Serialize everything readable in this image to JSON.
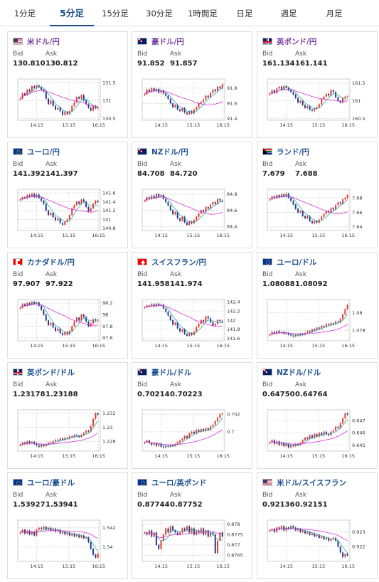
{
  "tabs": [
    {
      "label": "1分足",
      "active": false
    },
    {
      "label": "5分足",
      "active": true
    },
    {
      "label": "15分足",
      "active": false
    },
    {
      "label": "30分足",
      "active": false
    },
    {
      "label": "1時間足",
      "active": false
    },
    {
      "label": "日足",
      "active": false
    },
    {
      "label": "週足",
      "active": false
    },
    {
      "label": "月足",
      "active": false
    }
  ],
  "labels": {
    "bid": "Bid",
    "ask": "Ask"
  },
  "colors": {
    "up": "#e8372d",
    "down": "#1f3a8a",
    "ma_fast": "#2ea7a1",
    "ma_slow": "#d633d6",
    "title_jpy": "#7a3fa0",
    "title_other": "#1a4f8f",
    "active_tab": "#1a4f8f"
  },
  "cards": [
    {
      "pair": "米ドル/円",
      "flag": "us-jp",
      "jpy": true,
      "bid": "130.810",
      "ask": "130.812",
      "chart_data": {
        "type": "candlestick",
        "x_ticks": [
          "14:15",
          "15:15",
          "16:15"
        ],
        "y_ticks": [
          "131.5",
          "131",
          "130.5"
        ],
        "ylim": [
          130.45,
          131.6
        ],
        "close": [
          131.05,
          131.2,
          131.15,
          131.3,
          131.25,
          131.4,
          131.35,
          131.42,
          131.38,
          131.3,
          131.25,
          131.05,
          130.9,
          131.0,
          130.85,
          130.75,
          130.8,
          130.7,
          130.6,
          130.68,
          130.62,
          130.7,
          130.85,
          130.95,
          131.1,
          131.05,
          131.15,
          131.0,
          130.9,
          130.8,
          130.72,
          130.85,
          130.78,
          130.81
        ]
      }
    },
    {
      "pair": "豪ドル/円",
      "flag": "au-jp",
      "jpy": true,
      "bid": "91.852",
      "ask": "91.857",
      "chart_data": {
        "type": "candlestick",
        "x_ticks": [
          "14:15",
          "15:15",
          "16:15"
        ],
        "y_ticks": [
          "91.8",
          "91.6",
          "91.4"
        ],
        "ylim": [
          91.38,
          91.92
        ],
        "close": [
          91.72,
          91.78,
          91.75,
          91.8,
          91.76,
          91.79,
          91.74,
          91.77,
          91.73,
          91.7,
          91.66,
          91.6,
          91.55,
          91.58,
          91.52,
          91.5,
          91.54,
          91.48,
          91.46,
          91.5,
          91.47,
          91.52,
          91.55,
          91.6,
          91.62,
          91.65,
          91.7,
          91.68,
          91.74,
          91.78,
          91.76,
          91.82,
          91.8,
          91.85
        ]
      }
    },
    {
      "pair": "英ポンド/円",
      "flag": "uk-jp",
      "jpy": true,
      "bid": "161.134",
      "ask": "161.141",
      "chart_data": {
        "type": "candlestick",
        "x_ticks": [
          "14:15",
          "15:15",
          "16:15"
        ],
        "y_ticks": [
          "161.5",
          "161",
          "160.5"
        ],
        "ylim": [
          160.45,
          161.62
        ],
        "close": [
          161.2,
          161.3,
          161.22,
          161.35,
          161.4,
          161.32,
          161.42,
          161.38,
          161.3,
          161.25,
          161.18,
          161.08,
          160.95,
          161.0,
          160.88,
          160.8,
          160.85,
          160.75,
          160.72,
          160.78,
          160.82,
          160.9,
          161.05,
          161.12,
          161.2,
          161.15,
          161.3,
          161.25,
          161.1,
          161.0,
          160.95,
          161.08,
          161.12,
          161.13
        ]
      }
    },
    {
      "pair": "ユーロ/円",
      "flag": "eu-jp",
      "jpy": false,
      "bid": "141.392",
      "ask": "141.397",
      "chart_data": {
        "type": "candlestick",
        "x_ticks": [
          "14:15",
          "15:15",
          "16:15"
        ],
        "y_ticks": [
          "141.6",
          "141.4",
          "141.2",
          "141",
          "140.8"
        ],
        "ylim": [
          140.75,
          141.68
        ],
        "close": [
          141.45,
          141.5,
          141.48,
          141.55,
          141.52,
          141.58,
          141.5,
          141.56,
          141.48,
          141.42,
          141.35,
          141.2,
          141.1,
          141.15,
          141.05,
          140.98,
          141.02,
          140.92,
          140.88,
          140.95,
          141.0,
          141.1,
          141.25,
          141.32,
          141.4,
          141.35,
          141.45,
          141.4,
          141.28,
          141.18,
          141.25,
          141.35,
          141.42,
          141.39
        ]
      }
    },
    {
      "pair": "NZドル/円",
      "flag": "nz-jp",
      "jpy": false,
      "bid": "84.708",
      "ask": "84.720",
      "chart_data": {
        "type": "candlestick",
        "x_ticks": [
          "14:15",
          "15:15",
          "16:15"
        ],
        "y_ticks": [
          "84.8",
          "84.6",
          "84.4"
        ],
        "ylim": [
          84.35,
          84.86
        ],
        "close": [
          84.72,
          84.76,
          84.74,
          84.78,
          84.75,
          84.8,
          84.77,
          84.79,
          84.74,
          84.7,
          84.66,
          84.6,
          84.55,
          84.58,
          84.5,
          84.47,
          84.52,
          84.45,
          84.42,
          84.46,
          84.44,
          84.48,
          84.52,
          84.56,
          84.6,
          84.58,
          84.64,
          84.62,
          84.67,
          84.7,
          84.68,
          84.74,
          84.72,
          84.71
        ]
      }
    },
    {
      "pair": "ランド/円",
      "flag": "za-jp",
      "jpy": false,
      "bid": "7.679",
      "ask": "7.688",
      "chart_data": {
        "type": "candlestick",
        "x_ticks": [
          "14:15",
          "15:15",
          "16:15"
        ],
        "y_ticks": [
          "7.68",
          "7.66",
          "7.64"
        ],
        "ylim": [
          7.635,
          7.692
        ],
        "close": [
          7.678,
          7.682,
          7.68,
          7.684,
          7.681,
          7.685,
          7.682,
          7.686,
          7.68,
          7.676,
          7.671,
          7.665,
          7.66,
          7.662,
          7.655,
          7.652,
          7.655,
          7.648,
          7.645,
          7.648,
          7.646,
          7.65,
          7.654,
          7.658,
          7.662,
          7.66,
          7.666,
          7.664,
          7.67,
          7.674,
          7.672,
          7.678,
          7.68,
          7.684
        ]
      }
    },
    {
      "pair": "カナダドル/円",
      "flag": "ca-jp",
      "jpy": false,
      "bid": "97.907",
      "ask": "97.922",
      "chart_data": {
        "type": "candlestick",
        "x_ticks": [
          "14:15",
          "15:15",
          "16:15"
        ],
        "y_ticks": [
          "98.2",
          "98",
          "97.8",
          "97.6"
        ],
        "ylim": [
          97.55,
          98.26
        ],
        "close": [
          98.12,
          98.18,
          98.15,
          98.2,
          98.17,
          98.22,
          98.19,
          98.21,
          98.15,
          98.08,
          98.0,
          97.9,
          97.82,
          97.86,
          97.78,
          97.72,
          97.76,
          97.68,
          97.65,
          97.7,
          97.66,
          97.72,
          97.8,
          97.88,
          97.95,
          97.9,
          98.0,
          97.96,
          97.88,
          97.8,
          97.85,
          97.92,
          97.9,
          97.91
        ]
      }
    },
    {
      "pair": "スイスフラン/円",
      "flag": "ch-jp",
      "jpy": false,
      "bid": "141.958",
      "ask": "141.974",
      "chart_data": {
        "type": "candlestick",
        "x_ticks": [
          "14:15",
          "15:15",
          "16:15"
        ],
        "y_ticks": [
          "142.4",
          "142.2",
          "142",
          "141.8",
          "141.6"
        ],
        "ylim": [
          141.55,
          142.45
        ],
        "close": [
          142.28,
          142.32,
          142.3,
          142.35,
          142.3,
          142.36,
          142.32,
          142.34,
          142.25,
          142.18,
          142.1,
          142.0,
          141.9,
          141.95,
          141.82,
          141.75,
          141.8,
          141.7,
          141.66,
          141.72,
          141.68,
          141.75,
          141.85,
          141.92,
          142.0,
          141.96,
          142.08,
          142.04,
          141.95,
          141.88,
          141.92,
          142.0,
          141.98,
          141.96
        ]
      }
    },
    {
      "pair": "ユーロ/ドル",
      "flag": "eu-us",
      "jpy": false,
      "bid": "1.08088",
      "ask": "1.08092",
      "chart_data": {
        "type": "candlestick",
        "x_ticks": [
          "14:15",
          "15:15",
          "16:15"
        ],
        "y_ticks": [
          "1.08",
          "1.078"
        ],
        "ylim": [
          1.0768,
          1.0815
        ],
        "close": [
          1.0775,
          1.0778,
          1.0776,
          1.0779,
          1.0777,
          1.0778,
          1.0776,
          1.0777,
          1.0775,
          1.0774,
          1.0773,
          1.0775,
          1.0774,
          1.0776,
          1.0775,
          1.0777,
          1.0779,
          1.0778,
          1.0781,
          1.078,
          1.0783,
          1.0782,
          1.0785,
          1.0784,
          1.0787,
          1.0786,
          1.0788,
          1.0787,
          1.079,
          1.0789,
          1.0793,
          1.0798,
          1.0804,
          1.0809
        ]
      }
    },
    {
      "pair": "英ポンド/ドル",
      "flag": "uk-us",
      "jpy": false,
      "bid": "1.23178",
      "ask": "1.23188",
      "chart_data": {
        "type": "candlestick",
        "x_ticks": [
          "14:15",
          "15:15",
          "16:15"
        ],
        "y_ticks": [
          "1.232",
          "1.23",
          "1.228"
        ],
        "ylim": [
          1.2266,
          1.2325
        ],
        "close": [
          1.2275,
          1.2278,
          1.2276,
          1.228,
          1.2277,
          1.2279,
          1.2276,
          1.2274,
          1.2272,
          1.2275,
          1.2273,
          1.2276,
          1.2278,
          1.2277,
          1.228,
          1.2282,
          1.2281,
          1.2284,
          1.2282,
          1.2285,
          1.2284,
          1.2287,
          1.2286,
          1.2289,
          1.2288,
          1.2286,
          1.2289,
          1.2292,
          1.2295,
          1.2294,
          1.2302,
          1.2312,
          1.232,
          1.2318
        ]
      }
    },
    {
      "pair": "豪ドル/ドル",
      "flag": "au-us",
      "jpy": false,
      "bid": "0.70214",
      "ask": "0.70223",
      "chart_data": {
        "type": "candlestick",
        "x_ticks": [
          "14:15",
          "15:15",
          "16:15"
        ],
        "y_ticks": [
          "0.702",
          "0.7"
        ],
        "ylim": [
          0.6978,
          0.7025
        ],
        "close": [
          0.6988,
          0.699,
          0.6987,
          0.6985,
          0.6987,
          0.6984,
          0.6986,
          0.6983,
          0.6982,
          0.6984,
          0.6983,
          0.6985,
          0.6984,
          0.6986,
          0.6988,
          0.699,
          0.6992,
          0.6995,
          0.6993,
          0.6998,
          0.7,
          0.6998,
          0.7002,
          0.7,
          0.7003,
          0.7001,
          0.7004,
          0.7002,
          0.7006,
          0.7008,
          0.7012,
          0.7016,
          0.702,
          0.7021
        ]
      }
    },
    {
      "pair": "NZドル/ドル",
      "flag": "nz-us",
      "jpy": false,
      "bid": "0.64750",
      "ask": "0.64764",
      "chart_data": {
        "type": "candlestick",
        "x_ticks": [
          "14:15",
          "15:15",
          "16:15"
        ],
        "y_ticks": [
          "0.647",
          "0.646",
          "0.645"
        ],
        "ylim": [
          0.6445,
          0.6479
        ],
        "close": [
          0.6452,
          0.6454,
          0.6451,
          0.6453,
          0.645,
          0.6452,
          0.6449,
          0.6451,
          0.6448,
          0.645,
          0.6449,
          0.6451,
          0.645,
          0.6452,
          0.6454,
          0.6456,
          0.6455,
          0.6458,
          0.6456,
          0.6459,
          0.6457,
          0.646,
          0.6458,
          0.6461,
          0.6459,
          0.6458,
          0.6461,
          0.6462,
          0.6465,
          0.6464,
          0.6468,
          0.6472,
          0.6476,
          0.6475
        ]
      }
    },
    {
      "pair": "ユーロ/豪ドル",
      "flag": "eu-au",
      "jpy": false,
      "bid": "1.53927",
      "ask": "1.53941",
      "chart_data": {
        "type": "candlestick",
        "x_ticks": [
          "14:15",
          "15:15",
          "16:15"
        ],
        "y_ticks": [
          "1.542",
          "1.54"
        ],
        "ylim": [
          1.5385,
          1.5428
        ],
        "close": [
          1.5415,
          1.5418,
          1.5414,
          1.5417,
          1.5413,
          1.5416,
          1.5412,
          1.5418,
          1.542,
          1.5419,
          1.5421,
          1.5418,
          1.542,
          1.5417,
          1.5419,
          1.5416,
          1.5418,
          1.5414,
          1.5416,
          1.5413,
          1.5415,
          1.5412,
          1.5414,
          1.5411,
          1.5413,
          1.541,
          1.5412,
          1.5409,
          1.541,
          1.5405,
          1.5398,
          1.5392,
          1.5389,
          1.5393
        ]
      }
    },
    {
      "pair": "ユーロ/英ポンド",
      "flag": "eu-uk",
      "jpy": false,
      "bid": "0.87744",
      "ask": "0.87752",
      "chart_data": {
        "type": "candlestick",
        "x_ticks": [
          "14:15",
          "15:15",
          "16:15"
        ],
        "y_ticks": [
          "0.878",
          "0.8775",
          "0.877",
          "0.8765"
        ],
        "ylim": [
          0.8762,
          0.8782
        ],
        "close": [
          0.8776,
          0.8775,
          0.8777,
          0.8774,
          0.8776,
          0.877,
          0.8768,
          0.8772,
          0.8775,
          0.8778,
          0.8776,
          0.8779,
          0.8777,
          0.8776,
          0.8775,
          0.8776,
          0.8778,
          0.8777,
          0.8779,
          0.8776,
          0.8778,
          0.8775,
          0.8777,
          0.8776,
          0.8778,
          0.8775,
          0.8777,
          0.8774,
          0.8776,
          0.8775,
          0.8766,
          0.8772,
          0.8776,
          0.8774
        ]
      }
    },
    {
      "pair": "米ドル/スイスフラン",
      "flag": "us-ch",
      "jpy": false,
      "bid": "0.92136",
      "ask": "0.92151",
      "chart_data": {
        "type": "candlestick",
        "x_ticks": [
          "14:15",
          "15:15",
          "16:15"
        ],
        "y_ticks": [
          "0.923",
          "0.922"
        ],
        "ylim": [
          0.921,
          0.9238
        ],
        "close": [
          0.9231,
          0.9232,
          0.923,
          0.9233,
          0.9232,
          0.9234,
          0.9231,
          0.9233,
          0.9232,
          0.9234,
          0.9233,
          0.9231,
          0.9232,
          0.923,
          0.9231,
          0.9229,
          0.923,
          0.9228,
          0.9229,
          0.9227,
          0.9228,
          0.9226,
          0.9227,
          0.9225,
          0.9226,
          0.9224,
          0.9225,
          0.9226,
          0.9224,
          0.922,
          0.9216,
          0.9213,
          0.9215,
          0.9214
        ]
      }
    }
  ]
}
